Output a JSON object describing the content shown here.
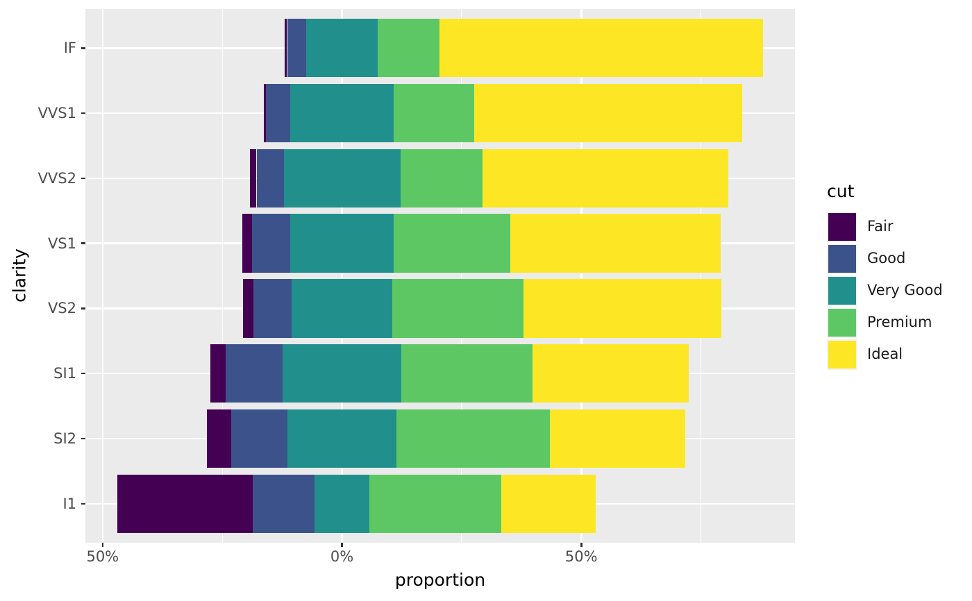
{
  "figure": {
    "background": "#FFFFFF",
    "panel_background": "#EBEBEB",
    "gridline_color": "#FFFFFF",
    "tick_mark_color": "#333333",
    "axis_text_color": "#4D4D4D",
    "title_text_color": "#000000"
  },
  "chart_data": {
    "type": "bar",
    "variant": "diverging-stacked-horizontal",
    "title": "",
    "xlabel": "proportion",
    "ylabel": "clarity",
    "categories": [
      "IF",
      "VVS1",
      "VVS2",
      "VS1",
      "VS2",
      "SI1",
      "SI2",
      "I1"
    ],
    "series": [
      {
        "name": "Fair",
        "color": "#440154",
        "values": [
          0.5,
          0.47,
          1.36,
          2.08,
          2.13,
          3.12,
          5.07,
          28.34
        ]
      },
      {
        "name": "Good",
        "color": "#3B528B",
        "values": [
          3.97,
          5.09,
          5.65,
          7.93,
          7.98,
          11.94,
          11.76,
          12.96
        ]
      },
      {
        "name": "Very Good",
        "color": "#21908C",
        "values": [
          14.97,
          21.59,
          24.38,
          21.72,
          21.14,
          24.8,
          22.84,
          11.34
        ]
      },
      {
        "name": "Premium",
        "color": "#5DC863",
        "values": [
          12.85,
          16.85,
          17.17,
          24.34,
          27.39,
          27.36,
          32.08,
          27.67
        ]
      },
      {
        "name": "Ideal",
        "color": "#FDE725",
        "values": [
          67.71,
          56.01,
          51.44,
          43.92,
          41.37,
          32.77,
          28.26,
          19.7
        ]
      }
    ],
    "units": "percent of row total",
    "centering": "each row is centered so half of the middle series (Very Good) lies left of 0%",
    "x_ticks": [
      {
        "value": -50,
        "label": "50%"
      },
      {
        "value": 0,
        "label": "0%"
      },
      {
        "value": 50,
        "label": "50%"
      }
    ],
    "x_minor_gridlines": [
      -25,
      25,
      75
    ],
    "xlim": [
      -53.7,
      94.8
    ],
    "grid": true,
    "legend": {
      "title": "cut",
      "position": "right",
      "entries": [
        "Fair",
        "Good",
        "Very Good",
        "Premium",
        "Ideal"
      ]
    }
  }
}
